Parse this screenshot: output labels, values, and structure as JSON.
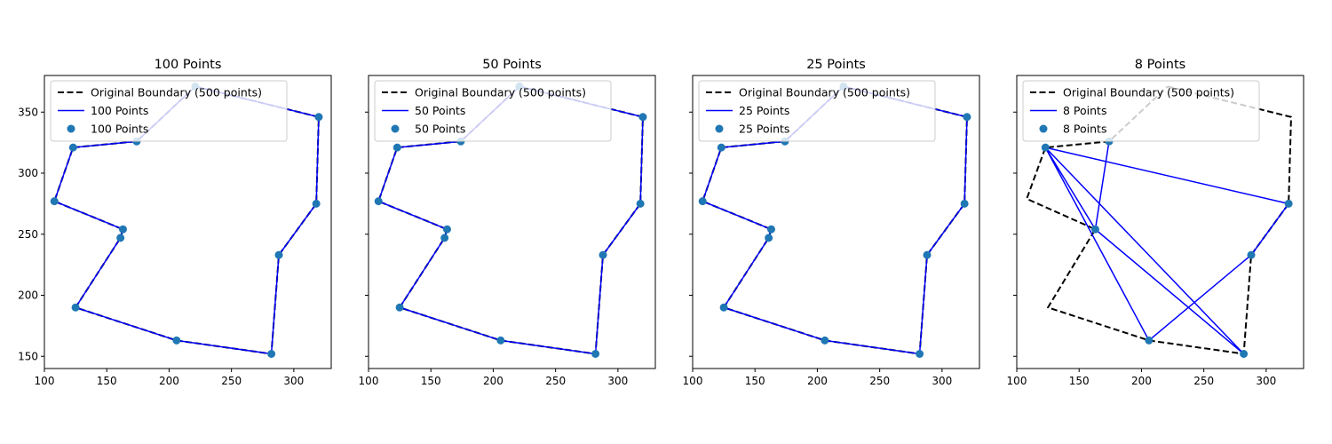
{
  "chart_data": [
    {
      "type": "line",
      "title": "100 Points",
      "xlim": [
        100,
        330
      ],
      "ylim": [
        140,
        380
      ],
      "xticks": [
        100,
        150,
        200,
        250,
        300
      ],
      "yticks": [
        150,
        200,
        250,
        300,
        350
      ],
      "show_yticklabels": true,
      "legend": {
        "placement": "top-left",
        "entries": [
          "Original Boundary (500 points)",
          "100 Points",
          "100 Points"
        ]
      },
      "series": [
        {
          "name": "Original Boundary (500 points)",
          "style": "dashed",
          "color": "#000000",
          "x": [
            221,
            320,
            318,
            288,
            282,
            206,
            125,
            161,
            163,
            108,
            123,
            174,
            221
          ],
          "y": [
            371,
            346,
            275,
            233,
            152,
            163,
            190,
            247,
            254,
            277,
            321,
            326,
            371
          ]
        },
        {
          "name": "100 Points",
          "style": "line",
          "color": "#0000ff",
          "x": [
            221,
            320,
            318,
            288,
            282,
            206,
            125,
            161,
            163,
            108,
            123,
            174,
            221
          ],
          "y": [
            371,
            346,
            275,
            233,
            152,
            163,
            190,
            247,
            254,
            277,
            321,
            326,
            371
          ]
        },
        {
          "name": "100 Points",
          "style": "scatter",
          "color": "#1f77b4",
          "x": [
            221,
            320,
            318,
            288,
            282,
            206,
            125,
            161,
            163,
            108,
            123,
            174
          ],
          "y": [
            371,
            346,
            275,
            233,
            152,
            163,
            190,
            247,
            254,
            277,
            321,
            326
          ]
        }
      ]
    },
    {
      "type": "line",
      "title": "50 Points",
      "xlim": [
        100,
        330
      ],
      "ylim": [
        140,
        380
      ],
      "xticks": [
        100,
        150,
        200,
        250,
        300
      ],
      "yticks": [
        150,
        200,
        250,
        300,
        350
      ],
      "show_yticklabels": false,
      "legend": {
        "placement": "top-left",
        "entries": [
          "Original Boundary (500 points)",
          "50 Points",
          "50 Points"
        ]
      },
      "series": [
        {
          "name": "Original Boundary (500 points)",
          "style": "dashed",
          "color": "#000000",
          "x": [
            221,
            320,
            318,
            288,
            282,
            206,
            125,
            161,
            163,
            108,
            123,
            174,
            221
          ],
          "y": [
            371,
            346,
            275,
            233,
            152,
            163,
            190,
            247,
            254,
            277,
            321,
            326,
            371
          ]
        },
        {
          "name": "50 Points",
          "style": "line",
          "color": "#0000ff",
          "x": [
            221,
            320,
            318,
            288,
            282,
            206,
            125,
            161,
            163,
            108,
            123,
            174,
            221
          ],
          "y": [
            371,
            346,
            275,
            233,
            152,
            163,
            190,
            247,
            254,
            277,
            321,
            326,
            371
          ]
        },
        {
          "name": "50 Points",
          "style": "scatter",
          "color": "#1f77b4",
          "x": [
            221,
            320,
            318,
            288,
            282,
            206,
            125,
            161,
            163,
            108,
            123,
            174
          ],
          "y": [
            371,
            346,
            275,
            233,
            152,
            163,
            190,
            247,
            254,
            277,
            321,
            326
          ]
        }
      ]
    },
    {
      "type": "line",
      "title": "25 Points",
      "xlim": [
        100,
        330
      ],
      "ylim": [
        140,
        380
      ],
      "xticks": [
        100,
        150,
        200,
        250,
        300
      ],
      "yticks": [
        150,
        200,
        250,
        300,
        350
      ],
      "show_yticklabels": false,
      "legend": {
        "placement": "top-left",
        "entries": [
          "Original Boundary (500 points)",
          "25 Points",
          "25 Points"
        ]
      },
      "series": [
        {
          "name": "Original Boundary (500 points)",
          "style": "dashed",
          "color": "#000000",
          "x": [
            221,
            320,
            318,
            288,
            282,
            206,
            125,
            161,
            163,
            108,
            123,
            174,
            221
          ],
          "y": [
            371,
            346,
            275,
            233,
            152,
            163,
            190,
            247,
            254,
            277,
            321,
            326,
            371
          ]
        },
        {
          "name": "25 Points",
          "style": "line",
          "color": "#0000ff",
          "x": [
            221,
            320,
            318,
            288,
            282,
            206,
            125,
            161,
            163,
            108,
            123,
            174,
            221
          ],
          "y": [
            371,
            346,
            275,
            233,
            152,
            163,
            190,
            247,
            254,
            277,
            321,
            326,
            371
          ]
        },
        {
          "name": "25 Points",
          "style": "scatter",
          "color": "#1f77b4",
          "x": [
            221,
            320,
            318,
            288,
            282,
            206,
            125,
            161,
            163,
            108,
            123,
            174
          ],
          "y": [
            371,
            346,
            275,
            233,
            152,
            163,
            190,
            247,
            254,
            277,
            321,
            326
          ]
        }
      ]
    },
    {
      "type": "line",
      "title": "8 Points",
      "xlim": [
        100,
        330
      ],
      "ylim": [
        140,
        380
      ],
      "xticks": [
        100,
        150,
        200,
        250,
        300
      ],
      "yticks": [
        150,
        200,
        250,
        300,
        350
      ],
      "show_yticklabels": false,
      "legend": {
        "placement": "top-left",
        "entries": [
          "Original Boundary (500 points)",
          "8 Points",
          "8 Points"
        ]
      },
      "series": [
        {
          "name": "Original Boundary (500 points)",
          "style": "dashed",
          "color": "#000000",
          "x": [
            221,
            320,
            318,
            288,
            282,
            206,
            125,
            163,
            108,
            123,
            174,
            221
          ],
          "y": [
            371,
            346,
            275,
            233,
            152,
            163,
            190,
            254,
            279,
            321,
            326,
            371
          ]
        },
        {
          "name": "8 Points",
          "style": "line",
          "color": "#0000ff",
          "x": [
            174,
            163,
            123,
            318,
            288,
            206,
            123,
            163,
            282,
            123
          ],
          "y": [
            326,
            254,
            321,
            275,
            233,
            163,
            321,
            254,
            152,
            321
          ]
        },
        {
          "name": "8 Points",
          "style": "scatter",
          "color": "#1f77b4",
          "x": [
            123,
            174,
            163,
            318,
            288,
            206,
            282
          ],
          "y": [
            321,
            326,
            254,
            275,
            233,
            163,
            152
          ]
        }
      ]
    }
  ]
}
